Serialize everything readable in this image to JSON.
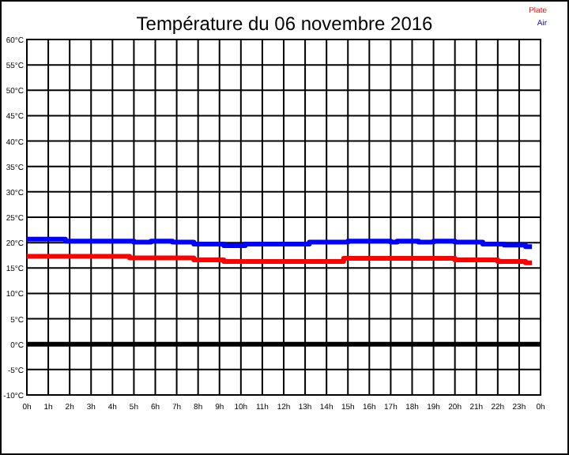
{
  "chart_data": {
    "type": "step",
    "title": "Température du 06 novembre 2016",
    "xlim": [
      "2016-11-06T00:00",
      "2016-11-07T00:00"
    ],
    "xticks": [
      {
        "value": "2016-11-06T00:00",
        "label": "0h"
      },
      {
        "value": "2016-11-06T01:00",
        "label": "1h"
      },
      {
        "value": "2016-11-06T02:00",
        "label": "2h"
      },
      {
        "value": "2016-11-06T03:00",
        "label": "3h"
      },
      {
        "value": "2016-11-06T04:00",
        "label": "4h"
      },
      {
        "value": "2016-11-06T05:00",
        "label": "5h"
      },
      {
        "value": "2016-11-06T06:00",
        "label": "6h"
      },
      {
        "value": "2016-11-06T07:00",
        "label": "7h"
      },
      {
        "value": "2016-11-06T08:00",
        "label": "8h"
      },
      {
        "value": "2016-11-06T09:00",
        "label": "9h"
      },
      {
        "value": "2016-11-06T10:00",
        "label": "10h"
      },
      {
        "value": "2016-11-06T11:00",
        "label": "11h"
      },
      {
        "value": "2016-11-06T12:00",
        "label": "12h"
      },
      {
        "value": "2016-11-06T13:00",
        "label": "13h"
      },
      {
        "value": "2016-11-06T14:00",
        "label": "14h"
      },
      {
        "value": "2016-11-06T15:00",
        "label": "15h"
      },
      {
        "value": "2016-11-06T16:00",
        "label": "16h"
      },
      {
        "value": "2016-11-06T17:00",
        "label": "17h"
      },
      {
        "value": "2016-11-06T18:00",
        "label": "18h"
      },
      {
        "value": "2016-11-06T19:00",
        "label": "19h"
      },
      {
        "value": "2016-11-06T20:00",
        "label": "20h"
      },
      {
        "value": "2016-11-06T21:00",
        "label": "21h"
      },
      {
        "value": "2016-11-06T22:00",
        "label": "22h"
      },
      {
        "value": "2016-11-06T23:00",
        "label": "23h"
      },
      {
        "value": "2016-11-07T00:00",
        "label": "0h"
      }
    ],
    "ylim": [
      -10,
      60
    ],
    "yticks": [
      {
        "value": -10,
        "label": "-10°C"
      },
      {
        "value": -5,
        "label": "-5°C"
      },
      {
        "value": 0,
        "label": "0°C"
      },
      {
        "value": 5,
        "label": "5°C"
      },
      {
        "value": 10,
        "label": "10°C"
      },
      {
        "value": 15,
        "label": "15°C"
      },
      {
        "value": 20,
        "label": "20°C"
      },
      {
        "value": 25,
        "label": "25°C"
      },
      {
        "value": 30,
        "label": "30°C"
      },
      {
        "value": 35,
        "label": "35°C"
      },
      {
        "value": 40,
        "label": "40°C"
      },
      {
        "value": 45,
        "label": "45°C"
      },
      {
        "value": 50,
        "label": "50°C"
      },
      {
        "value": 55,
        "label": "55°C"
      },
      {
        "value": 60,
        "label": "60°C"
      }
    ],
    "grid": true,
    "legend": "top right",
    "line_style": "solid",
    "ref_lines": [
      {
        "axis": "y",
        "value": 0,
        "color": "#000000"
      }
    ],
    "series": [
      {
        "name": "Plate",
        "color": "#ff0000",
        "x": [
          "2016-11-06T00:00",
          "2016-11-06T04:48",
          "2016-11-06T07:48",
          "2016-11-06T09:12",
          "2016-11-06T14:48",
          "2016-11-06T20:00",
          "2016-11-06T22:00",
          "2016-11-06T23:18",
          "2016-11-06T23:36"
        ],
        "values": [
          17.3,
          17.0,
          16.6,
          16.3,
          16.9,
          16.6,
          16.3,
          16.0,
          16.0
        ]
      },
      {
        "name": "Air",
        "color": "#0000ff",
        "x": [
          "2016-11-06T00:00",
          "2016-11-06T01:48",
          "2016-11-06T05:00",
          "2016-11-06T05:48",
          "2016-11-06T06:48",
          "2016-11-06T07:48",
          "2016-11-06T09:12",
          "2016-11-06T10:12",
          "2016-11-06T13:12",
          "2016-11-06T15:00",
          "2016-11-06T17:00",
          "2016-11-06T17:18",
          "2016-11-06T18:18",
          "2016-11-06T19:00",
          "2016-11-06T20:00",
          "2016-11-06T21:18",
          "2016-11-06T22:18",
          "2016-11-06T23:18",
          "2016-11-06T23:36"
        ],
        "values": [
          20.7,
          20.3,
          20.1,
          20.3,
          20.1,
          19.7,
          19.4,
          19.7,
          20.1,
          20.3,
          20.1,
          20.3,
          20.1,
          20.3,
          20.1,
          19.7,
          19.5,
          19.2,
          19.2
        ]
      }
    ]
  }
}
